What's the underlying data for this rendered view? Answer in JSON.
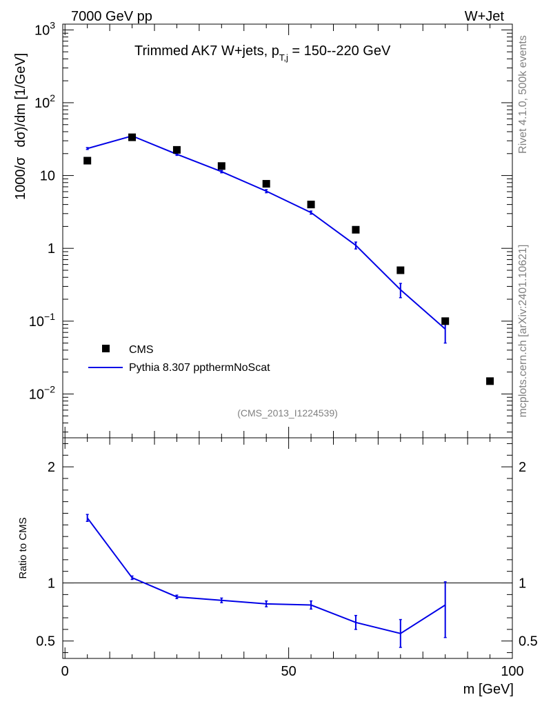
{
  "header": {
    "left": "7000 GeV pp",
    "right": "W+Jet",
    "side_top": "Rivet 4.1.0,  500k events",
    "side_bottom": "mcplots.cern.ch [arXiv:2401.10621]"
  },
  "chart_data": [
    {
      "type": "scatter",
      "role": "main",
      "title_main": "Trimmed AK7 W+jets, p",
      "title_sub": "T,j",
      "title_tail": " = 150--220 GeV",
      "ylabel_prefix": "1000/σ",
      "ylabel_main": "dσ)/dm [1/GeV]",
      "yscale": "log",
      "ylim": [
        0.0025,
        1200
      ],
      "xlim": [
        -0.5,
        100
      ],
      "y_ticks": [
        {
          "value": 1000,
          "base": "10",
          "exp": "3"
        },
        {
          "value": 100,
          "base": "10",
          "exp": "2"
        },
        {
          "value": 10,
          "label": "10"
        },
        {
          "value": 1,
          "label": "1"
        },
        {
          "value": 0.1,
          "base": "10",
          "exp": "−1"
        },
        {
          "value": 0.01,
          "base": "10",
          "exp": "−2"
        }
      ],
      "reference_label": "(CMS_2013_I1224539)",
      "legend_position": "bottom-left",
      "series": [
        {
          "name": "CMS",
          "style": "markers",
          "color": "#000000",
          "x": [
            5,
            15,
            25,
            35,
            45,
            55,
            65,
            75,
            85,
            95
          ],
          "y": [
            16,
            33.5,
            22.5,
            13.5,
            7.7,
            4.0,
            1.8,
            0.5,
            0.1,
            0.015
          ]
        },
        {
          "name": "Pythia 8.307 ppthermNoScat",
          "style": "line",
          "color": "#0000e6",
          "x": [
            5,
            15,
            25,
            35,
            45,
            55,
            65,
            75,
            85
          ],
          "y": [
            23.5,
            35,
            19.6,
            11.3,
            6.1,
            3.1,
            1.1,
            0.27,
            0.078
          ],
          "err_lo": [
            0.7,
            1.0,
            0.7,
            0.4,
            0.3,
            0.15,
            0.12,
            0.06,
            0.028
          ],
          "err_hi": [
            0.7,
            1.0,
            0.7,
            0.4,
            0.3,
            0.15,
            0.12,
            0.06,
            0.028
          ]
        }
      ]
    },
    {
      "type": "line",
      "role": "ratio",
      "ylabel": "Ratio to CMS",
      "xlabel": "m [GeV]",
      "xlim": [
        -0.5,
        100
      ],
      "ylim": [
        0.35,
        2.25
      ],
      "y_ticks": [
        {
          "value": 0.5,
          "label": "0.5"
        },
        {
          "value": 1,
          "label": "1"
        },
        {
          "value": 2,
          "label": "2"
        }
      ],
      "x_ticks": [
        {
          "value": 0,
          "label": "0"
        },
        {
          "value": 50,
          "label": "50"
        },
        {
          "value": 100,
          "label": "100"
        }
      ],
      "reference_line": 1,
      "series": [
        {
          "name": "Pythia 8.307 ppthermNoScat",
          "color": "#0000e6",
          "x": [
            5,
            15,
            25,
            35,
            45,
            55,
            65,
            75,
            85
          ],
          "y": [
            1.56,
            1.045,
            0.88,
            0.85,
            0.82,
            0.81,
            0.66,
            0.565,
            0.81
          ],
          "err_lo": [
            0.03,
            0.015,
            0.015,
            0.02,
            0.025,
            0.035,
            0.06,
            0.12,
            0.28
          ],
          "err_hi": [
            0.03,
            0.015,
            0.015,
            0.02,
            0.025,
            0.035,
            0.06,
            0.12,
            0.2
          ]
        }
      ]
    }
  ]
}
